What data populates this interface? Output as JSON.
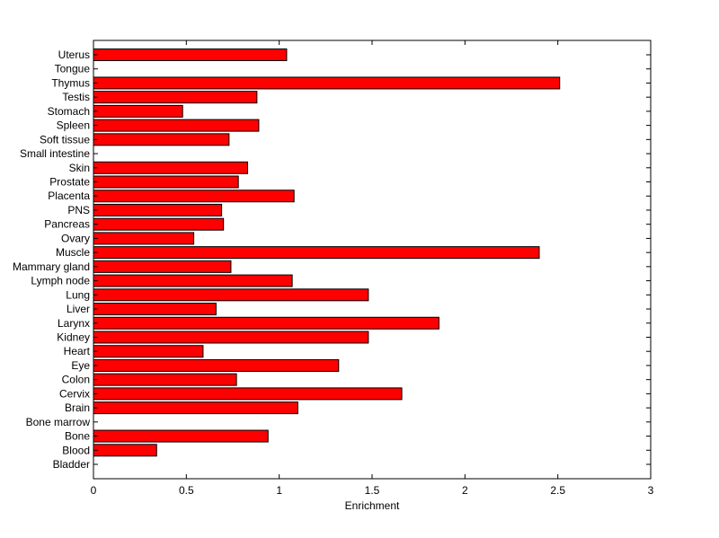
{
  "chart_data": {
    "type": "bar",
    "orientation": "horizontal",
    "categories": [
      "Uterus",
      "Tongue",
      "Thymus",
      "Testis",
      "Stomach",
      "Spleen",
      "Soft tissue",
      "Small intestine",
      "Skin",
      "Prostate",
      "Placenta",
      "PNS",
      "Pancreas",
      "Ovary",
      "Muscle",
      "Mammary gland",
      "Lymph node",
      "Lung",
      "Liver",
      "Larynx",
      "Kidney",
      "Heart",
      "Eye",
      "Colon",
      "Cervix",
      "Brain",
      "Bone marrow",
      "Bone",
      "Blood",
      "Bladder"
    ],
    "values": [
      1.04,
      0,
      2.51,
      0.88,
      0.48,
      0.89,
      0.73,
      0,
      0.83,
      0.78,
      1.08,
      0.69,
      0.7,
      0.54,
      2.4,
      0.74,
      1.07,
      1.48,
      0.66,
      1.86,
      1.48,
      0.59,
      1.32,
      0.77,
      1.66,
      1.1,
      0,
      0.94,
      0.34,
      0
    ],
    "xlabel": "Enrichment",
    "ylabel": "",
    "title": "",
    "xlim": [
      0,
      3
    ],
    "xticks": [
      "0",
      "0.5",
      "1",
      "1.5",
      "2",
      "2.5",
      "3"
    ],
    "grid": false,
    "bar_color": "#ff0000",
    "bar_edge_color": "#000000"
  }
}
